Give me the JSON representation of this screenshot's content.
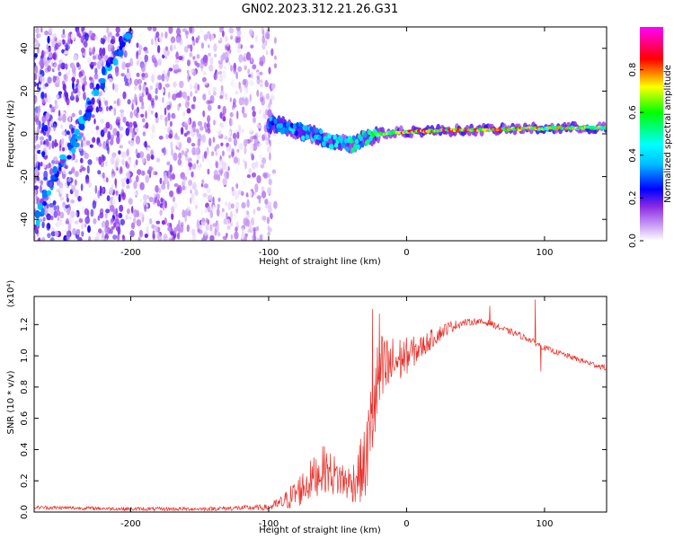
{
  "title": "GN02.2023.312.21.26.G31",
  "chart_data": [
    {
      "type": "heatmap",
      "panel": "spectrogram",
      "xlabel": "Height of straight line (km)",
      "ylabel": "Frequency (Hz)",
      "xlim": [
        -270,
        145
      ],
      "ylim": [
        -50,
        50
      ],
      "xticks": [
        -200,
        -100,
        0,
        100
      ],
      "yticks": [
        -40,
        -20,
        0,
        20,
        40
      ],
      "colorbar": {
        "label": "Normalized spectral amplitude",
        "range": [
          0.0,
          1.0
        ],
        "ticks": [
          0.0,
          0.2,
          0.4,
          0.6,
          0.8
        ],
        "colors": [
          "#ffffff",
          "#d8b8f8",
          "#8a2be2",
          "#0000ff",
          "#00ffff",
          "#00ff00",
          "#ffff00",
          "#ff0000",
          "#ff00ff"
        ]
      },
      "noise_region": {
        "x": [
          -270,
          -95
        ],
        "y": [
          -50,
          50
        ],
        "amplitude": 0.2
      },
      "ridge": [
        {
          "x": -268,
          "y": -42
        },
        {
          "x": -255,
          "y": -20
        },
        {
          "x": -240,
          "y": -2
        },
        {
          "x": -228,
          "y": 15
        },
        {
          "x": -215,
          "y": 32
        },
        {
          "x": -200,
          "y": 48
        }
      ],
      "main_signal": [
        {
          "x": -100,
          "y": 5,
          "amplitude": 0.35
        },
        {
          "x": -85,
          "y": 3,
          "amplitude": 0.4
        },
        {
          "x": -70,
          "y": 0,
          "amplitude": 0.45
        },
        {
          "x": -55,
          "y": -3,
          "amplitude": 0.5
        },
        {
          "x": -40,
          "y": -5,
          "amplitude": 0.55
        },
        {
          "x": -30,
          "y": -2,
          "amplitude": 0.5
        },
        {
          "x": -20,
          "y": 0,
          "amplitude": 0.7
        },
        {
          "x": 0,
          "y": 1,
          "amplitude": 0.85
        },
        {
          "x": 20,
          "y": 1.5,
          "amplitude": 0.95
        },
        {
          "x": 60,
          "y": 2,
          "amplitude": 0.95
        },
        {
          "x": 90,
          "y": 2.5,
          "amplitude": 0.8
        },
        {
          "x": 145,
          "y": 3,
          "amplitude": 0.75
        }
      ]
    },
    {
      "type": "line",
      "panel": "snr",
      "xlabel": "Height of straight line (km)",
      "ylabel": "SNR (10 * v/v)",
      "scale_label": "(x10⁴)",
      "xlim": [
        -270,
        145
      ],
      "ylim": [
        0,
        1.38
      ],
      "xticks": [
        -200,
        -100,
        0,
        100
      ],
      "yticks": [
        0.0,
        0.2,
        0.4,
        0.6,
        0.8,
        1.0,
        1.2
      ],
      "series": [
        {
          "name": "SNR",
          "color": "#e8302a",
          "envelope": {
            "x": [
              -270,
              -200,
              -150,
              -100,
              -90,
              -80,
              -70,
              -60,
              -50,
              -40,
              -30,
              -25,
              -20,
              -10,
              0,
              10,
              20,
              30,
              40,
              50,
              60,
              70,
              80,
              90,
              100,
              110,
              120,
              130,
              145
            ],
            "y": [
              0.03,
              0.02,
              0.02,
              0.03,
              0.06,
              0.12,
              0.2,
              0.28,
              0.22,
              0.18,
              0.3,
              0.6,
              0.85,
              0.95,
              1.0,
              1.05,
              1.12,
              1.18,
              1.21,
              1.22,
              1.21,
              1.17,
              1.14,
              1.1,
              1.05,
              1.02,
              0.99,
              0.96,
              0.92
            ],
            "noise": [
              0.012,
              0.012,
              0.012,
              0.02,
              0.05,
              0.1,
              0.13,
              0.15,
              0.13,
              0.12,
              0.25,
              0.3,
              0.3,
              0.18,
              0.12,
              0.08,
              0.06,
              0.04,
              0.025,
              0.02,
              0.02,
              0.02,
              0.02,
              0.02,
              0.018,
              0.018,
              0.018,
              0.018,
              0.018
            ]
          },
          "spikes": [
            {
              "x": -25,
              "y": 1.3
            },
            {
              "x": -20,
              "y": 1.27
            },
            {
              "x": 60,
              "y": 1.32
            },
            {
              "x": 93,
              "y": 1.36
            },
            {
              "x": 97,
              "y": 0.9
            }
          ]
        }
      ]
    }
  ]
}
